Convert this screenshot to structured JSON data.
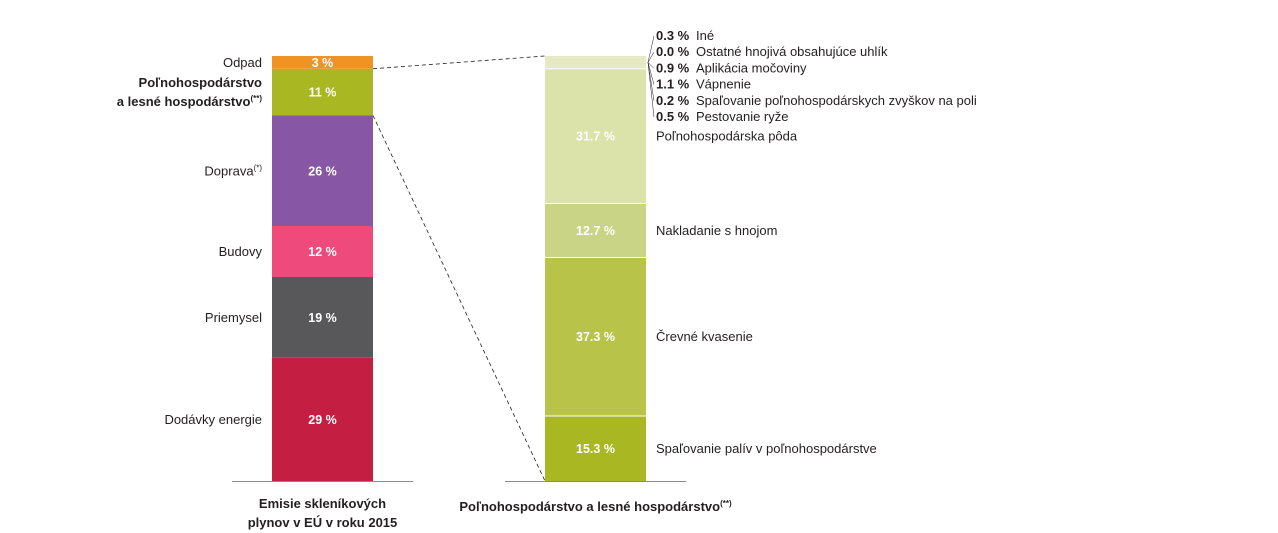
{
  "chart_data": [
    {
      "type": "bar",
      "stacked": true,
      "caption_lines": [
        "Emisie skleníkových",
        "plynov v EÚ v roku 2015"
      ],
      "unit": "%",
      "segments": [
        {
          "label": "Dodávky energie",
          "value": 29,
          "value_label": "29 %",
          "color": "#c41e42"
        },
        {
          "label": "Priemysel",
          "value": 19,
          "value_label": "19 %",
          "color": "#58585a"
        },
        {
          "label": "Budovy",
          "value": 12,
          "value_label": "12 %",
          "color": "#ee4a7c"
        },
        {
          "label": "Doprava",
          "label_sup": "(*)",
          "value": 26,
          "value_label": "26 %",
          "color": "#8757a5"
        },
        {
          "label_lines": [
            "Poľnohospodárstvo",
            "a lesné hospodárstvo"
          ],
          "label_sup": "(**)",
          "bold": true,
          "value": 11,
          "value_label": "11 %",
          "color": "#a9b822"
        },
        {
          "label": "Odpad",
          "value": 3,
          "value_label": "3 %",
          "color": "#f19322"
        }
      ]
    },
    {
      "type": "bar",
      "stacked": true,
      "caption": "Poľnohospodárstvo a lesné hospodárstvo",
      "caption_sup": "(**)",
      "unit": "%",
      "segments": [
        {
          "label": "Spaľovanie palív v poľnohospodárstve",
          "value": 15.3,
          "value_label": "15.3 %",
          "color": "#a9b822"
        },
        {
          "label": "Črevné kvasenie",
          "value": 37.3,
          "value_label": "37.3 %",
          "color": "#b8c349"
        },
        {
          "label": "Nakladanie s hnojom",
          "value": 12.7,
          "value_label": "12.7 %",
          "color": "#cad487"
        },
        {
          "label": "Poľnohospodárska pôda",
          "value": 31.7,
          "value_label": "31.7 %",
          "color": "#dbe2aa"
        },
        {
          "label": "Pestovanie ryže",
          "value": 0.5,
          "value_label": "0.5 %",
          "color": "#e4e9c2"
        },
        {
          "label": "Spaľovanie poľnohospodárskych zvyškov na poli",
          "value": 0.2,
          "value_label": "0.2 %",
          "color": "#e4e9c2"
        },
        {
          "label": "Vápnenie",
          "value": 1.1,
          "value_label": "1.1 %",
          "color": "#e4e9c2"
        },
        {
          "label": "Aplikácia močoviny",
          "value": 0.9,
          "value_label": "0.9 %",
          "color": "#e4e9c2"
        },
        {
          "label": "Ostatné hnojivá obsahujúce uhlík",
          "value": 0.0,
          "value_label": "0.0 %",
          "color": "#e4e9c2"
        },
        {
          "label": "Iné",
          "value": 0.3,
          "value_label": "0.3 %",
          "color": "#e4e9c2"
        }
      ]
    }
  ]
}
